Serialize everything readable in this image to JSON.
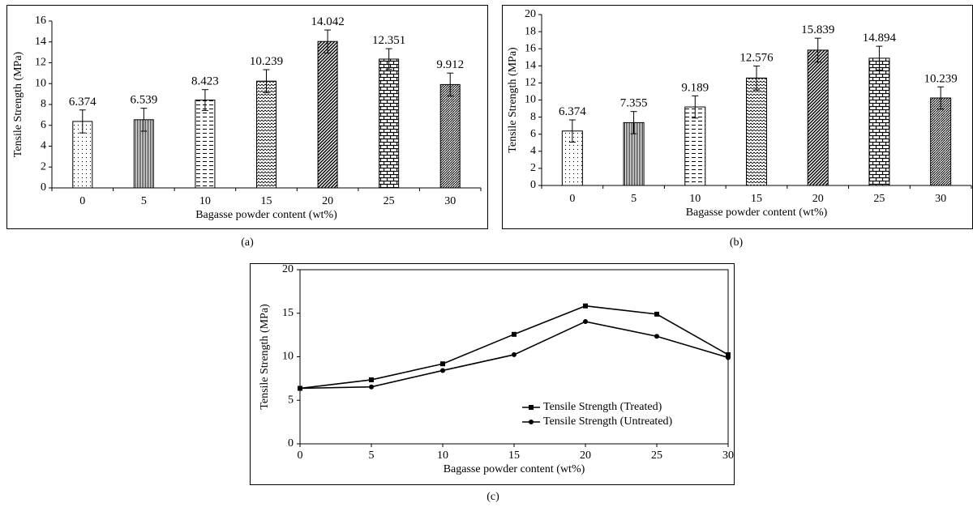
{
  "chart_data": [
    {
      "id": "a",
      "type": "bar",
      "caption": "(a)",
      "xlabel": "Bagasse powder content (wt%)",
      "ylabel": "Tensile Strength (MPa)",
      "categories": [
        "0",
        "5",
        "10",
        "15",
        "20",
        "25",
        "30"
      ],
      "values": [
        6.374,
        6.539,
        8.423,
        10.239,
        14.042,
        12.351,
        9.912
      ],
      "value_labels": [
        "6.374",
        "6.539",
        "8.423",
        "10.239",
        "14.042",
        "12.351",
        "9.912"
      ],
      "error": [
        1.1,
        1.1,
        1.0,
        1.1,
        1.1,
        1.0,
        1.1
      ],
      "ylim": [
        0,
        16
      ],
      "yticks": [
        0,
        2,
        4,
        6,
        8,
        10,
        12,
        14,
        16
      ],
      "grid": false,
      "patterns": [
        "dots",
        "vlines",
        "dashes",
        "waves",
        "diag",
        "bricks",
        "zigzag"
      ]
    },
    {
      "id": "b",
      "type": "bar",
      "caption": "(b)",
      "xlabel": "Bagasse powder content (wt%)",
      "ylabel": "Tensile Strength (MPa)",
      "categories": [
        "0",
        "5",
        "10",
        "15",
        "20",
        "25",
        "30"
      ],
      "values": [
        6.374,
        7.355,
        9.189,
        12.576,
        15.839,
        14.894,
        10.239
      ],
      "value_labels": [
        "6.374",
        "7.355",
        "9.189",
        "12.576",
        "15.839",
        "14.894",
        "10.239"
      ],
      "error": [
        1.3,
        1.3,
        1.3,
        1.4,
        1.4,
        1.4,
        1.3
      ],
      "ylim": [
        0,
        20
      ],
      "yticks": [
        0,
        2,
        4,
        6,
        8,
        10,
        12,
        14,
        16,
        18,
        20
      ],
      "grid": false,
      "patterns": [
        "dots",
        "vlines",
        "dashes",
        "waves",
        "diag",
        "bricks",
        "zigzag"
      ]
    },
    {
      "id": "c",
      "type": "line",
      "caption": "(c)",
      "xlabel": "Bagasse powder content (wt%)",
      "ylabel": "Tensile Strength (MPa)",
      "x": [
        0,
        5,
        10,
        15,
        20,
        25,
        30
      ],
      "xlim": [
        0,
        30
      ],
      "ylim": [
        0,
        20
      ],
      "xticks": [
        0,
        5,
        10,
        15,
        20,
        25,
        30
      ],
      "yticks": [
        0,
        5,
        10,
        15,
        20
      ],
      "grid": false,
      "legend_position": "bottom-right",
      "series": [
        {
          "name": "Tensile Strength (Treated)",
          "marker": "square",
          "values": [
            6.374,
            7.355,
            9.189,
            12.576,
            15.839,
            14.894,
            10.239
          ]
        },
        {
          "name": "Tensile Strength (Untreated)",
          "marker": "circle",
          "values": [
            6.374,
            6.539,
            8.423,
            10.239,
            14.042,
            12.351,
            9.912
          ]
        }
      ]
    }
  ]
}
